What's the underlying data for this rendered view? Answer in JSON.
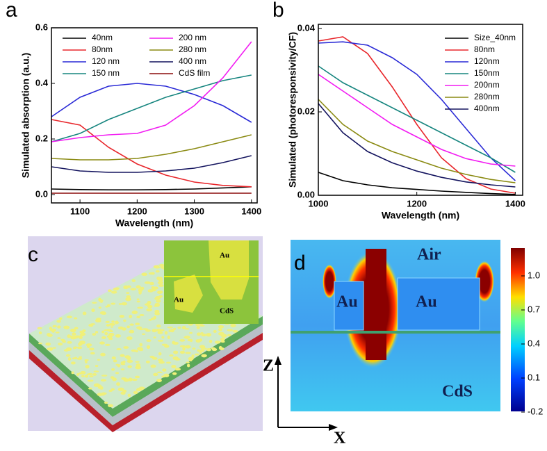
{
  "chart_data": [
    {
      "type": "line",
      "panel_label": "a",
      "x_label": "Wavelength (nm)",
      "y_label": "Simulated absorption (a.u.)",
      "x": [
        1050,
        1100,
        1150,
        1200,
        1250,
        1300,
        1350,
        1400
      ],
      "xlim": [
        1050,
        1410
      ],
      "xticks": [
        1100,
        1200,
        1300,
        1400
      ],
      "ylim": [
        -0.03,
        0.6
      ],
      "yticks": [
        {
          "value": 0,
          "label": "0.0"
        },
        0.2,
        0.4,
        0.6
      ],
      "series": [
        {
          "name": "40nm",
          "color": "#000000",
          "values": [
            0.02,
            0.018,
            0.017,
            0.017,
            0.018,
            0.02,
            0.024,
            0.028
          ]
        },
        {
          "name": "80nm",
          "color": "#e8262b",
          "values": [
            0.27,
            0.25,
            0.17,
            0.11,
            0.07,
            0.045,
            0.033,
            0.028
          ]
        },
        {
          "name": "120 nm",
          "color": "#2a2ad6",
          "values": [
            0.28,
            0.35,
            0.39,
            0.4,
            0.39,
            0.36,
            0.32,
            0.26
          ]
        },
        {
          "name": "150 nm",
          "color": "#16857f",
          "values": [
            0.19,
            0.22,
            0.27,
            0.31,
            0.35,
            0.38,
            0.41,
            0.43
          ]
        },
        {
          "name": "200 nm",
          "color": "#f21bf2",
          "values": [
            0.19,
            0.205,
            0.215,
            0.22,
            0.25,
            0.32,
            0.42,
            0.55
          ]
        },
        {
          "name": "280 nm",
          "color": "#8a8a12",
          "values": [
            0.13,
            0.125,
            0.125,
            0.13,
            0.145,
            0.165,
            0.19,
            0.215
          ]
        },
        {
          "name": "400 nm",
          "color": "#13135e",
          "values": [
            0.1,
            0.085,
            0.08,
            0.08,
            0.085,
            0.095,
            0.115,
            0.14
          ]
        },
        {
          "name": "CdS film",
          "color": "#8b0b0b",
          "values": [
            0.005,
            0.005,
            0.005,
            0.005,
            0.005,
            0.005,
            0.005,
            0.005
          ]
        }
      ]
    },
    {
      "type": "line",
      "panel_label": "b",
      "x_label": "Wavelength (nm)",
      "y_label": "Simulated (photoresponsivity/CF)",
      "x": [
        1000,
        1050,
        1100,
        1150,
        1200,
        1250,
        1300,
        1350,
        1400
      ],
      "xlim": [
        1000,
        1415
      ],
      "xticks": [
        1000,
        1200,
        1400
      ],
      "ylim": [
        0,
        0.041
      ],
      "yticks": [
        {
          "value": 0,
          "label": "0.00"
        },
        0.02,
        0.04
      ],
      "series": [
        {
          "name": "Size_40nm",
          "color": "#000000",
          "values": [
            0.0055,
            0.0035,
            0.0025,
            0.0018,
            0.0014,
            0.001,
            0.0007,
            0.0004,
            0.0002
          ]
        },
        {
          "name": "80nm",
          "color": "#e8262b",
          "values": [
            0.037,
            0.038,
            0.034,
            0.026,
            0.017,
            0.009,
            0.004,
            0.0015,
            0.0005
          ]
        },
        {
          "name": "120nm",
          "color": "#2a2ad6",
          "values": [
            0.0365,
            0.0368,
            0.036,
            0.033,
            0.029,
            0.023,
            0.016,
            0.009,
            0.0035
          ]
        },
        {
          "name": "150nm",
          "color": "#16857f",
          "values": [
            0.031,
            0.027,
            0.024,
            0.021,
            0.018,
            0.015,
            0.012,
            0.009,
            0.0055
          ]
        },
        {
          "name": "200nm",
          "color": "#f21bf2",
          "values": [
            0.029,
            0.025,
            0.021,
            0.017,
            0.014,
            0.011,
            0.0088,
            0.0075,
            0.007
          ]
        },
        {
          "name": "280nm",
          "color": "#8a8a12",
          "values": [
            0.023,
            0.017,
            0.013,
            0.0105,
            0.0085,
            0.0065,
            0.005,
            0.0038,
            0.003
          ]
        },
        {
          "name": "400nm",
          "color": "#13135e",
          "values": [
            0.022,
            0.015,
            0.0105,
            0.0078,
            0.0058,
            0.0043,
            0.0032,
            0.0025,
            0.002
          ]
        }
      ]
    }
  ],
  "panel_c": {
    "label": "c",
    "inset_labels": [
      "Au",
      "Au",
      "CdS"
    ]
  },
  "panel_d": {
    "label": "d",
    "labels": [
      "Air",
      "Au",
      "Au",
      "CdS"
    ],
    "colorbar_ticks": [
      "1.0",
      "0.7",
      "0.4",
      "0.1",
      "-0.2"
    ],
    "axis_z": "Z",
    "axis_x": "X"
  }
}
